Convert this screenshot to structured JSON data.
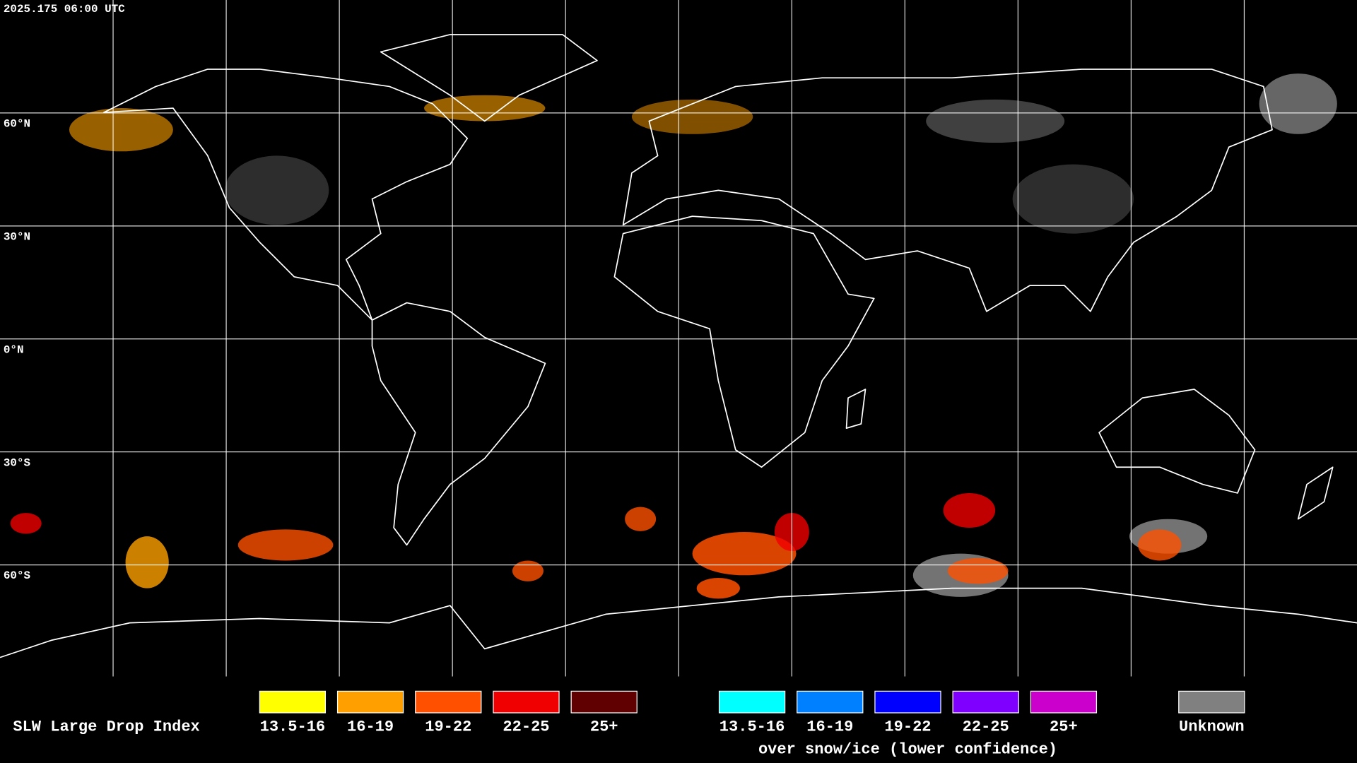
{
  "header": {
    "timestamp": "2025.175 06:00 UTC"
  },
  "map": {
    "lat_labels": [
      "60°N",
      "30°N",
      "0°N",
      "30°S",
      "60°S"
    ]
  },
  "legend": {
    "title": "SLW Large Drop Index",
    "groups": [
      {
        "items": [
          {
            "label": "13.5-16",
            "color": "#ffff00"
          },
          {
            "label": "16-19",
            "color": "#ffa000"
          },
          {
            "label": "19-22",
            "color": "#ff5000"
          },
          {
            "label": "22-25",
            "color": "#f00000"
          },
          {
            "label": "25+",
            "color": "#600000"
          }
        ]
      },
      {
        "items": [
          {
            "label": "13.5-16",
            "color": "#00ffff"
          },
          {
            "label": "16-19",
            "color": "#0080ff"
          },
          {
            "label": "19-22",
            "color": "#0000ff"
          },
          {
            "label": "22-25",
            "color": "#8000ff"
          },
          {
            "label": "25+",
            "color": "#cc00cc"
          }
        ],
        "caption": "over snow/ice (lower confidence)"
      }
    ],
    "unknown": {
      "label": "Unknown",
      "color": "#808080"
    }
  }
}
